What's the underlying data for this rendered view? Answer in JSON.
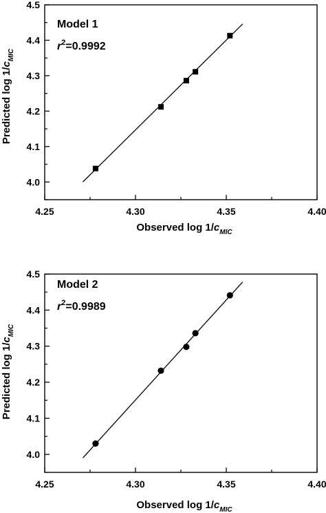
{
  "chart_data": [
    {
      "type": "scatter",
      "title": "",
      "annotations": {
        "model": "Model 1",
        "r_label": "r",
        "r_exponent": "2",
        "r_value": "=0.9992"
      },
      "xlabel": {
        "text": "Observed log 1/",
        "var": "c",
        "sub": "MIC"
      },
      "ylabel": {
        "text": "Predicted log 1/",
        "var": "c",
        "sub": "MIC"
      },
      "xlim": [
        4.25,
        4.4
      ],
      "ylim": [
        3.95,
        4.5
      ],
      "x_ticks": [
        "4.25",
        "4.30",
        "4.35",
        "4.40"
      ],
      "y_ticks": [
        "4.0",
        "4.1",
        "4.2",
        "4.3",
        "4.4",
        "4.5"
      ],
      "marker": "square",
      "grid": false,
      "points": [
        {
          "x": 4.278,
          "y": 4.038
        },
        {
          "x": 4.314,
          "y": 4.212
        },
        {
          "x": 4.328,
          "y": 4.286
        },
        {
          "x": 4.333,
          "y": 4.311
        },
        {
          "x": 4.352,
          "y": 4.413
        }
      ],
      "fit_line": [
        {
          "x": 4.271,
          "y": 4.0
        },
        {
          "x": 4.359,
          "y": 4.446
        }
      ]
    },
    {
      "type": "scatter",
      "title": "",
      "annotations": {
        "model": "Model 2",
        "r_label": "r",
        "r_exponent": "2",
        "r_value": "=0.9989"
      },
      "xlabel": {
        "text": "Observed log 1/",
        "var": "c",
        "sub": "MIC"
      },
      "ylabel": {
        "text": "Predicted log 1/",
        "var": "c",
        "sub": "MIC"
      },
      "xlim": [
        4.25,
        4.4
      ],
      "ylim": [
        3.95,
        4.5
      ],
      "x_ticks": [
        "4.25",
        "4.30",
        "4.35",
        "4.40"
      ],
      "y_ticks": [
        "4.0",
        "4.1",
        "4.2",
        "4.3",
        "4.4",
        "4.5"
      ],
      "marker": "circle",
      "grid": false,
      "points": [
        {
          "x": 4.278,
          "y": 4.03
        },
        {
          "x": 4.314,
          "y": 4.232
        },
        {
          "x": 4.328,
          "y": 4.298
        },
        {
          "x": 4.333,
          "y": 4.336
        },
        {
          "x": 4.352,
          "y": 4.441
        }
      ],
      "fit_line": [
        {
          "x": 4.271,
          "y": 3.99
        },
        {
          "x": 4.359,
          "y": 4.478
        }
      ]
    }
  ]
}
